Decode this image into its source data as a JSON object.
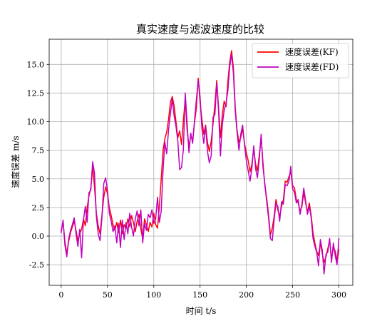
{
  "chart_data": {
    "type": "line",
    "title": "真实速度与滤波速度的比较",
    "xlabel": "时间 t/s",
    "ylabel": "速度误差 m/s",
    "xlim": [
      -13,
      315
    ],
    "ylim": [
      -4.3,
      17.2
    ],
    "xticks": [
      0,
      50,
      100,
      150,
      200,
      250,
      300
    ],
    "yticks": [
      -2.5,
      0.0,
      2.5,
      5.0,
      7.5,
      10.0,
      12.5,
      15.0
    ],
    "ytick_labels": [
      "-2.5",
      "0.0",
      "2.5",
      "5.0",
      "7.5",
      "10.0",
      "12.5",
      "15.0"
    ],
    "grid": true,
    "legend_position": "top-right",
    "series": [
      {
        "name": "速度误差(KF)",
        "color": "#ff0000",
        "x": [
          0,
          2,
          4,
          6,
          8,
          10,
          12,
          14,
          16,
          18,
          20,
          22,
          24,
          26,
          28,
          30,
          32,
          34,
          36,
          38,
          40,
          42,
          44,
          46,
          48,
          50,
          52,
          54,
          56,
          58,
          60,
          62,
          64,
          66,
          68,
          70,
          72,
          74,
          76,
          78,
          80,
          82,
          84,
          86,
          88,
          90,
          92,
          94,
          96,
          98,
          100,
          102,
          104,
          106,
          108,
          110,
          112,
          114,
          116,
          118,
          120,
          122,
          124,
          126,
          128,
          130,
          132,
          134,
          136,
          138,
          140,
          142,
          144,
          146,
          148,
          150,
          152,
          154,
          156,
          158,
          160,
          162,
          164,
          166,
          168,
          170,
          172,
          174,
          176,
          178,
          180,
          182,
          184,
          186,
          188,
          190,
          192,
          194,
          196,
          198,
          200,
          202,
          204,
          206,
          208,
          210,
          212,
          214,
          216,
          218,
          220,
          222,
          224,
          226,
          228,
          230,
          232,
          234,
          236,
          238,
          240,
          242,
          244,
          246,
          248,
          250,
          252,
          254,
          256,
          258,
          260,
          262,
          264,
          266,
          268,
          270,
          272,
          274,
          276,
          278,
          280,
          282,
          284,
          286,
          288,
          290,
          292,
          294,
          296,
          298,
          300
        ],
        "y": [
          0.5,
          1.2,
          -0.5,
          -1.5,
          -0.5,
          0.3,
          0.8,
          1.3,
          0.5,
          -0.4,
          0.2,
          0.6,
          1.5,
          0.9,
          2.5,
          3.5,
          4.2,
          6.0,
          4.3,
          2.0,
          0.9,
          0.2,
          1.8,
          3.4,
          4.3,
          3.7,
          2.5,
          1.8,
          1.0,
          0.5,
          1.2,
          0.3,
          1.4,
          0.2,
          1.0,
          0.7,
          1.5,
          0.8,
          1.8,
          1.2,
          0.4,
          1.3,
          1.9,
          0.6,
          -0.2,
          1.5,
          1.0,
          0.4,
          1.2,
          0.8,
          2.0,
          1.0,
          0.7,
          2.6,
          5.0,
          7.5,
          8.5,
          9.1,
          10.2,
          11.7,
          12.2,
          11.4,
          10.0,
          8.6,
          9.2,
          8.0,
          10.1,
          12.0,
          9.3,
          7.8,
          8.8,
          8.3,
          9.9,
          11.2,
          13.8,
          11.7,
          10.2,
          8.9,
          9.7,
          8.2,
          7.4,
          8.3,
          9.8,
          11.5,
          13.6,
          11.2,
          8.6,
          10.6,
          11.8,
          11.3,
          13.5,
          15.2,
          16.2,
          14.7,
          11.2,
          9.2,
          8.2,
          8.6,
          9.4,
          8.1,
          7.3,
          6.6,
          5.6,
          6.3,
          7.6,
          6.3,
          5.7,
          7.1,
          8.6,
          6.4,
          4.4,
          3.3,
          1.9,
          0.1,
          0.7,
          1.7,
          3.2,
          2.3,
          1.7,
          2.6,
          3.2,
          4.8,
          4.7,
          5.2,
          5.6,
          4.4,
          4.2,
          3.2,
          2.9,
          2.2,
          2.6,
          3.8,
          2.9,
          2.1,
          2.9,
          1.8,
          0.3,
          -0.6,
          -1.3,
          -1.7,
          -0.6,
          -1.5,
          -2.3,
          -1.8,
          -1.1,
          -0.4,
          -2.0,
          -1.0,
          -1.3,
          -2.1,
          -1.2
        ]
      },
      {
        "name": "速度误差(FD)",
        "color": "#c000c0",
        "x": [
          0,
          2,
          4,
          6,
          8,
          10,
          12,
          14,
          16,
          18,
          20,
          22,
          24,
          26,
          28,
          30,
          32,
          34,
          36,
          38,
          40,
          42,
          44,
          46,
          48,
          50,
          52,
          54,
          56,
          58,
          60,
          62,
          64,
          66,
          68,
          70,
          72,
          74,
          76,
          78,
          80,
          82,
          84,
          86,
          88,
          90,
          92,
          94,
          96,
          98,
          100,
          102,
          104,
          106,
          108,
          110,
          112,
          114,
          116,
          118,
          120,
          122,
          124,
          126,
          128,
          130,
          132,
          134,
          136,
          138,
          140,
          142,
          144,
          146,
          148,
          150,
          152,
          154,
          156,
          158,
          160,
          162,
          164,
          166,
          168,
          170,
          172,
          174,
          176,
          178,
          180,
          182,
          184,
          186,
          188,
          190,
          192,
          194,
          196,
          198,
          200,
          202,
          204,
          206,
          208,
          210,
          212,
          214,
          216,
          218,
          220,
          222,
          224,
          226,
          228,
          230,
          232,
          234,
          236,
          238,
          240,
          242,
          244,
          246,
          248,
          250,
          252,
          254,
          256,
          258,
          260,
          262,
          264,
          266,
          268,
          270,
          272,
          274,
          276,
          278,
          280,
          282,
          284,
          286,
          288,
          290,
          292,
          294,
          296,
          298,
          300
        ],
        "y": [
          0.3,
          1.4,
          -0.8,
          -1.8,
          -0.3,
          0.5,
          1.0,
          1.6,
          0.2,
          -0.9,
          0.6,
          -1.9,
          1.4,
          2.6,
          1.2,
          3.8,
          4.0,
          6.5,
          5.5,
          1.7,
          0.2,
          -0.4,
          1.6,
          4.6,
          5.1,
          4.0,
          2.0,
          1.3,
          0.4,
          0.9,
          -0.6,
          1.1,
          -1.0,
          1.4,
          -0.3,
          1.2,
          0.2,
          2.0,
          0.8,
          0.0,
          1.5,
          2.2,
          0.9,
          2.3,
          -0.6,
          1.1,
          0.5,
          1.9,
          1.6,
          2.3,
          1.1,
          1.5,
          3.4,
          1.2,
          2.2,
          5.8,
          8.2,
          7.2,
          9.3,
          10.7,
          12.0,
          10.5,
          9.6,
          8.3,
          5.8,
          6.0,
          7.6,
          12.5,
          9.9,
          7.3,
          9.0,
          8.1,
          10.1,
          11.9,
          13.6,
          12.2,
          9.4,
          8.1,
          9.6,
          7.4,
          6.4,
          7.0,
          10.4,
          10.6,
          13.4,
          10.9,
          7.0,
          9.7,
          11.0,
          11.6,
          12.7,
          14.8,
          15.9,
          14.2,
          10.9,
          9.0,
          7.5,
          8.9,
          9.7,
          8.0,
          6.6,
          5.7,
          4.8,
          5.9,
          7.9,
          5.9,
          5.1,
          6.7,
          8.9,
          6.0,
          4.6,
          3.0,
          1.6,
          -0.2,
          -0.4,
          1.4,
          2.9,
          2.6,
          1.3,
          3.0,
          2.8,
          4.5,
          4.4,
          4.8,
          6.1,
          4.1,
          3.8,
          2.9,
          3.2,
          1.9,
          2.8,
          4.2,
          3.1,
          1.9,
          2.6,
          1.6,
          -0.2,
          -0.9,
          -1.4,
          -2.6,
          -0.3,
          -1.2,
          -3.3,
          -1.6,
          -1.4,
          -0.2,
          -2.3,
          -0.6,
          -1.7,
          -2.5,
          -0.2
        ]
      }
    ]
  }
}
